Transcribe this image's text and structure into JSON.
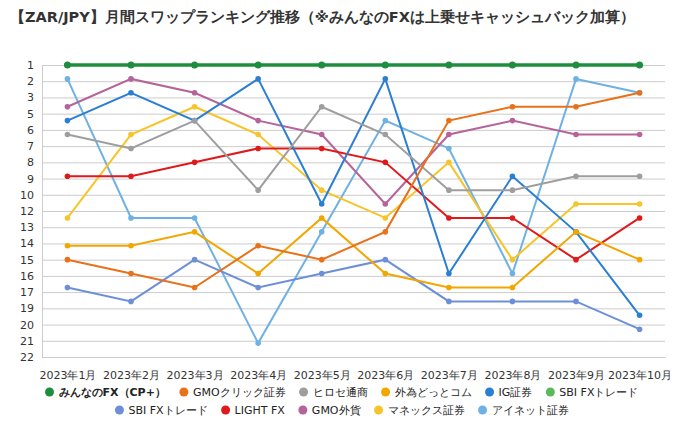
{
  "chart_data": {
    "type": "line",
    "title": "【ZAR/JPY】月間スワップランキング推移（※みんなのFXは上乗せキャッシュバック加算）",
    "categories": [
      "2023年1月",
      "2023年2月",
      "2023年3月",
      "2023年4月",
      "2023年5月",
      "2023年6月",
      "2023年7月",
      "2023年8月",
      "2023年9月",
      "2023年10月"
    ],
    "ylim": [
      22,
      1
    ],
    "yticks": [
      1,
      {
        "value": 2.1667,
        "label": "2"
      },
      {
        "value": 3.3333,
        "label": "3"
      },
      {
        "value": 4.5,
        "label": "5"
      },
      {
        "value": 5.6667,
        "label": "6"
      },
      {
        "value": 6.8333,
        "label": "7"
      },
      8,
      {
        "value": 9.1667,
        "label": "9"
      },
      {
        "value": 10.3333,
        "label": "10"
      },
      {
        "value": 11.5,
        "label": "12"
      },
      {
        "value": 12.6667,
        "label": "13"
      },
      {
        "value": 13.8333,
        "label": "14"
      },
      15,
      {
        "value": 16.1667,
        "label": "16"
      },
      {
        "value": 17.3333,
        "label": "17"
      },
      {
        "value": 18.5,
        "label": "19"
      },
      {
        "value": 19.6667,
        "label": "20"
      },
      {
        "value": 20.8333,
        "label": "21"
      },
      22
    ],
    "grid": true,
    "legend": "bottom",
    "marker": "circle",
    "series": [
      {
        "name": "みんなのFX（CP+）",
        "color": "#1e8e3e",
        "values": [
          1,
          1,
          1,
          1,
          1,
          1,
          1,
          1,
          1,
          1
        ]
      },
      {
        "name": "GMOクリック証券",
        "color": "#e8711a",
        "values": [
          15,
          16,
          17,
          14,
          15,
          13,
          5,
          4,
          4,
          3
        ]
      },
      {
        "name": "ヒロセ通商",
        "color": "#9e9e9e",
        "values": [
          6,
          7,
          5,
          10,
          4,
          6,
          10,
          10,
          9,
          9
        ]
      },
      {
        "name": "外為どっとコム",
        "color": "#f2a600",
        "values": [
          14,
          14,
          13,
          16,
          12,
          16,
          17,
          17,
          13,
          15
        ]
      },
      {
        "name": "IG証券",
        "color": "#2a7fd4",
        "values": [
          5,
          3,
          5,
          2,
          11,
          2,
          16,
          9,
          13,
          19
        ]
      },
      {
        "name": "SBI FXトレード",
        "color": "#5cb85c",
        "values": [
          null,
          null,
          null,
          null,
          null,
          null,
          null,
          null,
          null,
          null
        ]
      },
      {
        "name": "SBI FXトレード",
        "color": "#6d8fd8",
        "values": [
          17,
          18,
          15,
          17,
          16,
          15,
          18,
          18,
          18,
          20
        ]
      },
      {
        "name": "LIGHT FX",
        "color": "#e0191b",
        "values": [
          9,
          9,
          8,
          7,
          7,
          8,
          12,
          12,
          15,
          12
        ]
      },
      {
        "name": "GMO外貨",
        "color": "#b5649a",
        "values": [
          4,
          2,
          3,
          5,
          6,
          11,
          6,
          5,
          6,
          6
        ]
      },
      {
        "name": "マネックス証券",
        "color": "#f7c52b",
        "values": [
          12,
          6,
          4,
          6,
          10,
          12,
          8,
          15,
          11,
          11
        ]
      },
      {
        "name": "アイネット証券",
        "color": "#6fb1e3",
        "values": [
          2,
          12,
          12,
          21,
          13,
          5,
          7,
          16,
          2,
          3
        ]
      }
    ]
  }
}
